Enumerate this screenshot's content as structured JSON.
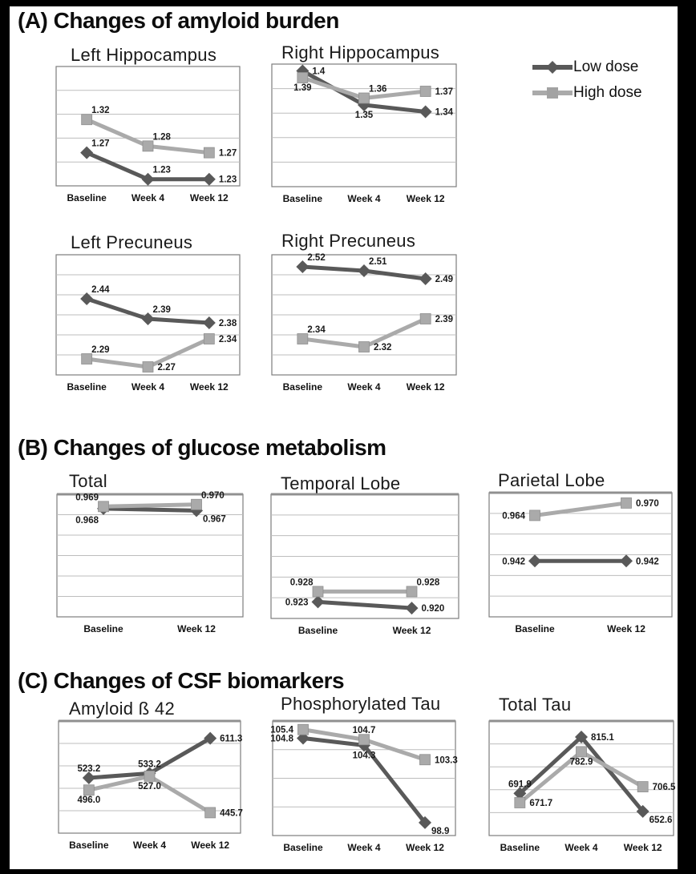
{
  "page": {
    "background": "#000000",
    "panel_background": "#ffffff"
  },
  "colors": {
    "low_dose": "#595959",
    "high_dose": "#aaaaaa",
    "gridline": "#bdbdbd",
    "plot_border": "#7d7d7d",
    "label_text": "#1a1a1a"
  },
  "legend": {
    "items": [
      {
        "label": "Low dose",
        "series": "low",
        "marker": "diamond",
        "color": "#595959"
      },
      {
        "label": "High dose",
        "series": "high",
        "marker": "square",
        "color": "#aaaaaa"
      }
    ]
  },
  "sections": [
    {
      "id": "A",
      "title": "(A) Changes of amyloid burden"
    },
    {
      "id": "B",
      "title": "(B) Changes of glucose metabolism"
    },
    {
      "id": "C",
      "title": "(C) Changes of CSF biomarkers"
    }
  ],
  "chart_data": [
    {
      "id": "left_hippocampus",
      "section": "A",
      "type": "line",
      "title": "Left Hippocampus",
      "categories": [
        "Baseline",
        "Week 4",
        "Week 12"
      ],
      "ylim": [
        1.22,
        1.4
      ],
      "grid_divisions": 5,
      "grid": true,
      "legend_position": "top-right-of-figure",
      "series": [
        {
          "name": "Low dose",
          "marker": "diamond",
          "color": "#595959",
          "values": [
            1.27,
            1.23,
            1.23
          ],
          "labels": [
            "1.27",
            "1.23",
            "1.23"
          ],
          "label_pos": [
            "above-right",
            "above-right",
            "right"
          ]
        },
        {
          "name": "High dose",
          "marker": "square",
          "color": "#aaaaaa",
          "values": [
            1.32,
            1.28,
            1.27
          ],
          "labels": [
            "1.32",
            "1.28",
            "1.27"
          ],
          "label_pos": [
            "above-right",
            "above-right",
            "right"
          ]
        }
      ]
    },
    {
      "id": "right_hippocampus",
      "section": "A",
      "type": "line",
      "title": "Right Hippocampus",
      "categories": [
        "Baseline",
        "Week 4",
        "Week 12"
      ],
      "ylim": [
        1.23,
        1.41
      ],
      "grid_divisions": 5,
      "grid": true,
      "series": [
        {
          "name": "Low dose",
          "marker": "diamond",
          "color": "#595959",
          "values": [
            1.4,
            1.35,
            1.34
          ],
          "labels": [
            "1.4",
            "1.35",
            "1.34"
          ],
          "label_pos": [
            "right",
            "below",
            "right"
          ]
        },
        {
          "name": "High dose",
          "marker": "square",
          "color": "#aaaaaa",
          "values": [
            1.39,
            1.36,
            1.37
          ],
          "labels": [
            "1.39",
            "1.36",
            "1.37"
          ],
          "label_pos": [
            "below",
            "above-right",
            "right"
          ]
        }
      ]
    },
    {
      "id": "left_precuneus",
      "section": "A",
      "type": "line",
      "title": "Left Precuneus",
      "categories": [
        "Baseline",
        "Week 4",
        "Week 12"
      ],
      "ylim": [
        2.25,
        2.55
      ],
      "grid_divisions": 6,
      "grid": true,
      "series": [
        {
          "name": "Low dose",
          "marker": "diamond",
          "color": "#595959",
          "values": [
            2.44,
            2.39,
            2.38
          ],
          "labels": [
            "2.44",
            "2.39",
            "2.38"
          ],
          "label_pos": [
            "above-right",
            "above-right",
            "right"
          ]
        },
        {
          "name": "High dose",
          "marker": "square",
          "color": "#aaaaaa",
          "values": [
            2.29,
            2.27,
            2.34
          ],
          "labels": [
            "2.29",
            "2.27",
            "2.34"
          ],
          "label_pos": [
            "above-right",
            "right",
            "right"
          ]
        }
      ]
    },
    {
      "id": "right_precuneus",
      "section": "A",
      "type": "line",
      "title": "Right Precuneus",
      "categories": [
        "Baseline",
        "Week 4",
        "Week 12"
      ],
      "ylim": [
        2.25,
        2.55
      ],
      "grid_divisions": 6,
      "grid": true,
      "series": [
        {
          "name": "Low dose",
          "marker": "diamond",
          "color": "#595959",
          "values": [
            2.52,
            2.51,
            2.49
          ],
          "labels": [
            "2.52",
            "2.51",
            "2.49"
          ],
          "label_pos": [
            "above-right",
            "above-right",
            "right"
          ]
        },
        {
          "name": "High dose",
          "marker": "square",
          "color": "#aaaaaa",
          "values": [
            2.34,
            2.32,
            2.39
          ],
          "labels": [
            "2.34",
            "2.32",
            "2.39"
          ],
          "label_pos": [
            "above-right",
            "right",
            "right"
          ]
        }
      ]
    },
    {
      "id": "total_glucose",
      "section": "B",
      "type": "line",
      "title": "Total",
      "categories": [
        "Baseline",
        "Week 12"
      ],
      "ylim": [
        0.915,
        0.975
      ],
      "grid_divisions": 6,
      "grid": true,
      "series": [
        {
          "name": "Low dose",
          "marker": "diamond",
          "color": "#595959",
          "values": [
            0.968,
            0.967
          ],
          "labels": [
            "0.968",
            "0.967"
          ],
          "label_pos": [
            "below-left",
            "below-right"
          ]
        },
        {
          "name": "High dose",
          "marker": "square",
          "color": "#aaaaaa",
          "values": [
            0.969,
            0.97
          ],
          "labels": [
            "0.969",
            "0.970"
          ],
          "label_pos": [
            "above-left",
            "above-right"
          ]
        }
      ]
    },
    {
      "id": "temporal_lobe",
      "section": "B",
      "type": "line",
      "title": "Temporal Lobe",
      "categories": [
        "Baseline",
        "Week 12"
      ],
      "ylim": [
        0.915,
        0.975
      ],
      "grid_divisions": 6,
      "grid": true,
      "series": [
        {
          "name": "Low dose",
          "marker": "diamond",
          "color": "#595959",
          "values": [
            0.923,
            0.92
          ],
          "labels": [
            "0.923",
            "0.920"
          ],
          "label_pos": [
            "left",
            "right"
          ]
        },
        {
          "name": "High dose",
          "marker": "square",
          "color": "#aaaaaa",
          "values": [
            0.928,
            0.928
          ],
          "labels": [
            "0.928",
            "0.928"
          ],
          "label_pos": [
            "above-left",
            "above-right"
          ]
        }
      ]
    },
    {
      "id": "parietal_lobe",
      "section": "B",
      "type": "line",
      "title": "Parietal Lobe",
      "categories": [
        "Baseline",
        "Week 12"
      ],
      "ylim": [
        0.915,
        0.975
      ],
      "grid_divisions": 6,
      "grid": true,
      "series": [
        {
          "name": "Low dose",
          "marker": "diamond",
          "color": "#595959",
          "values": [
            0.942,
            0.942
          ],
          "labels": [
            "0.942",
            "0.942"
          ],
          "label_pos": [
            "left",
            "right"
          ]
        },
        {
          "name": "High dose",
          "marker": "square",
          "color": "#aaaaaa",
          "values": [
            0.964,
            0.97
          ],
          "labels": [
            "0.964",
            "0.970"
          ],
          "label_pos": [
            "left",
            "right"
          ]
        }
      ]
    },
    {
      "id": "amyloid_b42",
      "section": "C",
      "type": "line",
      "title": "Amyloid ß 42",
      "categories": [
        "Baseline",
        "Week 4",
        "Week 12"
      ],
      "ylim": [
        400,
        650
      ],
      "grid_divisions": 5,
      "grid": true,
      "series": [
        {
          "name": "Low dose",
          "marker": "diamond",
          "color": "#595959",
          "values": [
            523.2,
            533.2,
            611.3
          ],
          "labels": [
            "523.2",
            "533.2",
            "611.3"
          ],
          "label_pos": [
            "above",
            "above",
            "right"
          ]
        },
        {
          "name": "High dose",
          "marker": "square",
          "color": "#aaaaaa",
          "values": [
            496.0,
            527.0,
            445.7
          ],
          "labels": [
            "496.0",
            "527.0",
            "445.7"
          ],
          "label_pos": [
            "below",
            "below",
            "right"
          ]
        }
      ]
    },
    {
      "id": "phosphorylated_tau",
      "section": "C",
      "type": "line",
      "title": "Phosphorylated Tau",
      "categories": [
        "Baseline",
        "Week 4",
        "Week 12"
      ],
      "ylim": [
        98,
        106
      ],
      "grid_divisions": 4,
      "grid": true,
      "series": [
        {
          "name": "Low dose",
          "marker": "diamond",
          "color": "#595959",
          "values": [
            104.8,
            104.3,
            98.9
          ],
          "labels": [
            "104.8",
            "104.3",
            "98.9"
          ],
          "label_pos": [
            "left",
            "below",
            "below-right"
          ]
        },
        {
          "name": "High dose",
          "marker": "square",
          "color": "#aaaaaa",
          "values": [
            105.4,
            104.7,
            103.3
          ],
          "labels": [
            "105.4",
            "104.7",
            "103.3"
          ],
          "label_pos": [
            "left",
            "above",
            "right"
          ]
        }
      ]
    },
    {
      "id": "total_tau",
      "section": "C",
      "type": "line",
      "title": "Total Tau",
      "categories": [
        "Baseline",
        "Week 4",
        "Week 12"
      ],
      "ylim": [
        600,
        850
      ],
      "grid_divisions": 5,
      "grid": true,
      "series": [
        {
          "name": "Low dose",
          "marker": "diamond",
          "color": "#595959",
          "values": [
            691.9,
            815.1,
            652.6
          ],
          "labels": [
            "691.9",
            "815.1",
            "652.6"
          ],
          "label_pos": [
            "above",
            "right",
            "below-right"
          ]
        },
        {
          "name": "High dose",
          "marker": "square",
          "color": "#aaaaaa",
          "values": [
            671.7,
            782.9,
            706.5
          ],
          "labels": [
            "671.7",
            "782.9",
            "706.5"
          ],
          "label_pos": [
            "right",
            "below",
            "right"
          ]
        }
      ]
    }
  ]
}
